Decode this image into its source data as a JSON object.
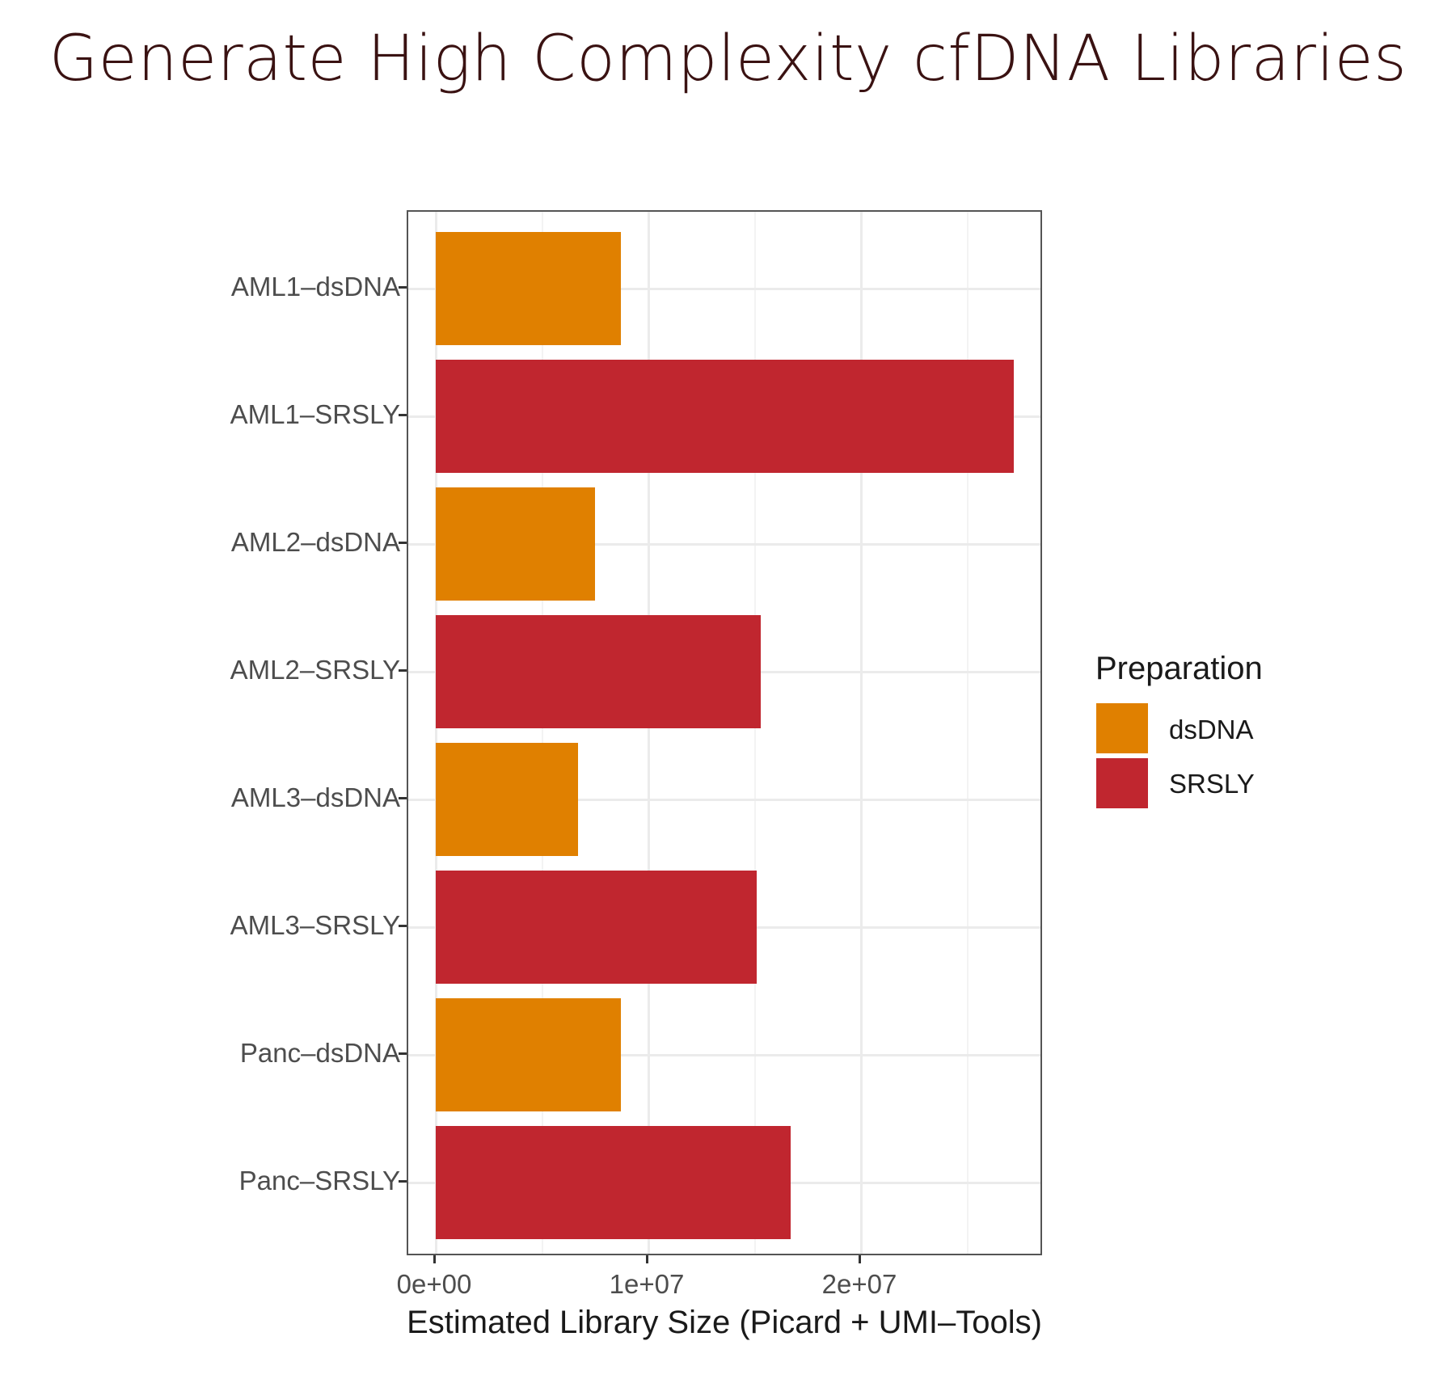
{
  "title": "Generate High Complexity cfDNA Libraries",
  "colors": {
    "dsDNA": "#e08000",
    "SRSLY": "#c0262f",
    "title": "#3a1212"
  },
  "chart_data": {
    "type": "bar",
    "orientation": "horizontal",
    "title": "Generate High Complexity cfDNA Libraries",
    "xlabel": "Estimated Library Size (Picard + UMI–Tools)",
    "ylabel": "",
    "xlim": [
      0,
      28000000
    ],
    "x_ticks": [
      "0e+00",
      "1e+07",
      "2e+07"
    ],
    "grid": true,
    "legend_position": "right",
    "legend_title": "Preparation",
    "categories": [
      "AML1–dsDNA",
      "AML1–SRSLY",
      "AML2–dsDNA",
      "AML2–SRSLY",
      "AML3–dsDNA",
      "AML3–SRSLY",
      "Panc–dsDNA",
      "Panc–SRSLY"
    ],
    "values": [
      8700000,
      27200000,
      7500000,
      15300000,
      6700000,
      15100000,
      8700000,
      16700000
    ],
    "group": [
      "dsDNA",
      "SRSLY",
      "dsDNA",
      "SRSLY",
      "dsDNA",
      "SRSLY",
      "dsDNA",
      "SRSLY"
    ],
    "series": [
      {
        "name": "dsDNA",
        "color": "#e08000",
        "categories": [
          "AML1–dsDNA",
          "AML2–dsDNA",
          "AML3–dsDNA",
          "Panc–dsDNA"
        ],
        "values": [
          8700000,
          7500000,
          6700000,
          8700000
        ]
      },
      {
        "name": "SRSLY",
        "color": "#c0262f",
        "categories": [
          "AML1–SRSLY",
          "AML2–SRSLY",
          "AML3–SRSLY",
          "Panc–SRSLY"
        ],
        "values": [
          27200000,
          15300000,
          15100000,
          16700000
        ]
      }
    ]
  },
  "legend": {
    "title": "Preparation",
    "items": [
      {
        "label": "dsDNA",
        "color": "#e08000"
      },
      {
        "label": "SRSLY",
        "color": "#c0262f"
      }
    ]
  }
}
